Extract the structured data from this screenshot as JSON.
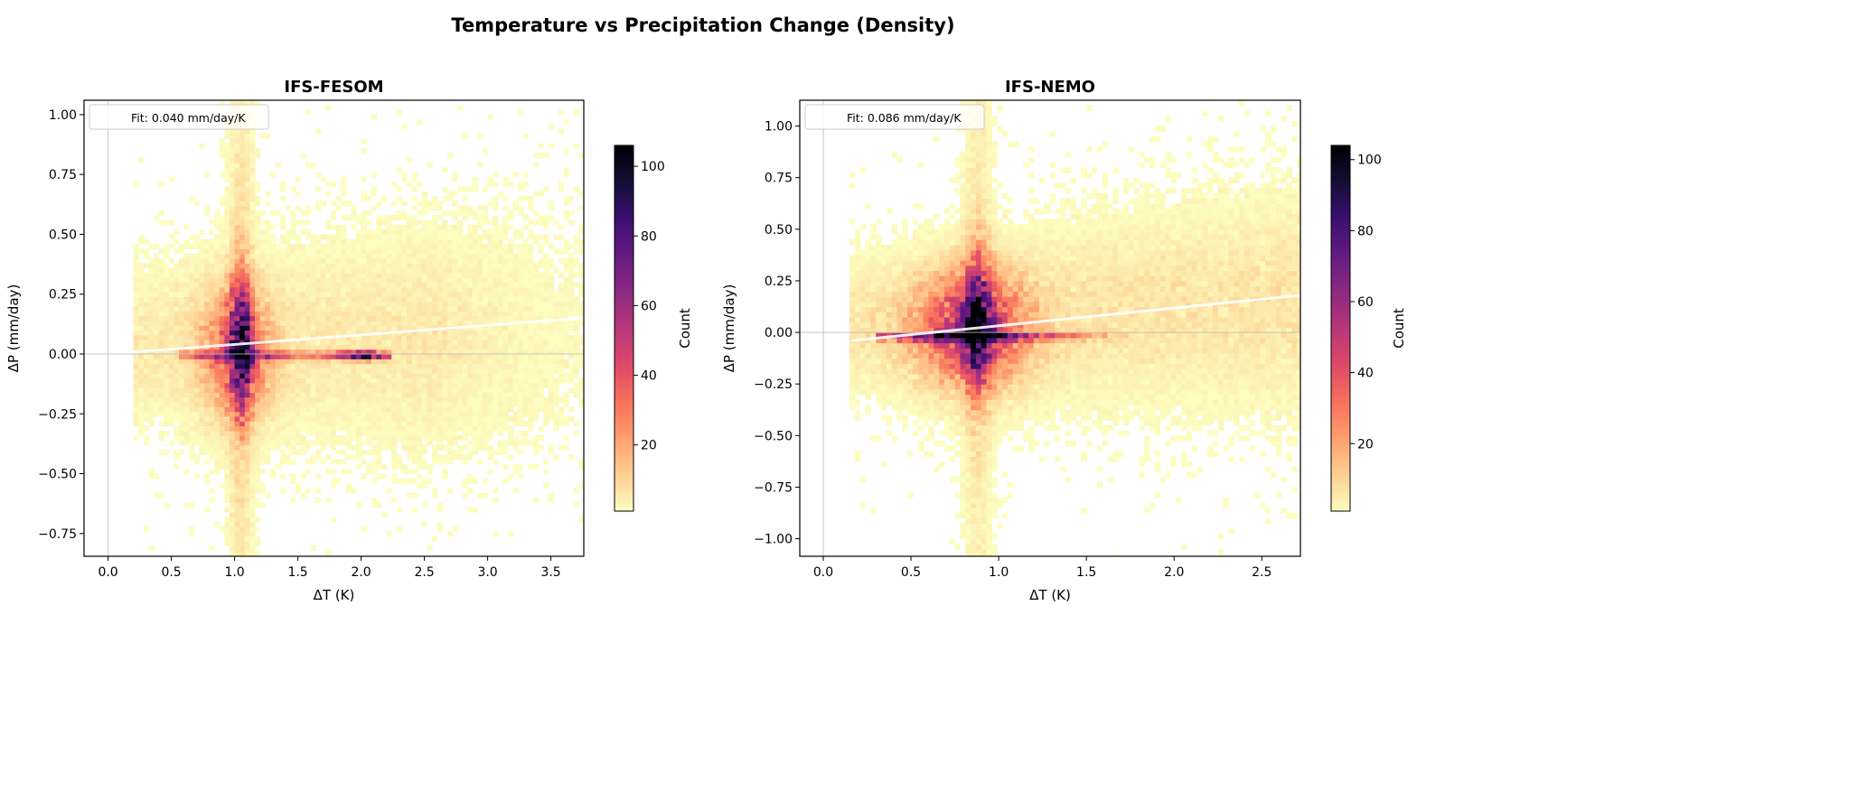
{
  "suptitle": "Temperature vs Precipitation Change (Density)",
  "chart_data": [
    {
      "type": "heatmap",
      "title": "IFS-FESOM",
      "xlabel": "ΔT (K)",
      "ylabel": "ΔP (mm/day)",
      "xlim": [
        -0.19,
        3.76
      ],
      "ylim": [
        -0.845,
        1.06
      ],
      "xticks": [
        "0.0",
        "0.5",
        "1.0",
        "1.5",
        "2.0",
        "2.5",
        "3.0",
        "3.5"
      ],
      "yticks": [
        "−0.75",
        "−0.50",
        "−0.25",
        "0.00",
        "0.25",
        "0.50",
        "0.75",
        "1.00"
      ],
      "colormap": "magma_r",
      "colorbar": {
        "label": "Count",
        "range": [
          1,
          106
        ],
        "ticks": [
          "20",
          "40",
          "60",
          "80",
          "100"
        ]
      },
      "fit": {
        "slope": 0.04,
        "intercept": 0.0,
        "x_range": [
          0.2,
          3.76
        ],
        "color": "#ffffff"
      },
      "legend": {
        "label": "Fit: 0.040 mm/day/K",
        "position": "upper left"
      },
      "reference_lines": {
        "x": 0,
        "y": 0,
        "color": "#bbbbbb"
      },
      "grid": false
    },
    {
      "type": "heatmap",
      "title": "IFS-NEMO",
      "xlabel": "ΔT (K)",
      "ylabel": "ΔP (mm/day)",
      "xlim": [
        -0.134,
        2.72
      ],
      "ylim": [
        -1.085,
        1.125
      ],
      "xticks": [
        "0.0",
        "0.5",
        "1.0",
        "1.5",
        "2.0",
        "2.5"
      ],
      "yticks": [
        "−1.00",
        "−0.75",
        "−0.50",
        "−0.25",
        "0.00",
        "0.25",
        "0.50",
        "0.75",
        "1.00"
      ],
      "colormap": "magma_r",
      "colorbar": {
        "label": "Count",
        "range": [
          1,
          104
        ],
        "ticks": [
          "20",
          "40",
          "60",
          "80",
          "100"
        ]
      },
      "fit": {
        "slope": 0.086,
        "intercept": -0.054,
        "x_range": [
          0.16,
          2.72
        ],
        "color": "#ffffff"
      },
      "legend": {
        "label": "Fit: 0.086 mm/day/K",
        "position": "upper left"
      },
      "reference_lines": {
        "x": 0,
        "y": 0,
        "color": "#bbbbbb"
      },
      "grid": false
    }
  ]
}
